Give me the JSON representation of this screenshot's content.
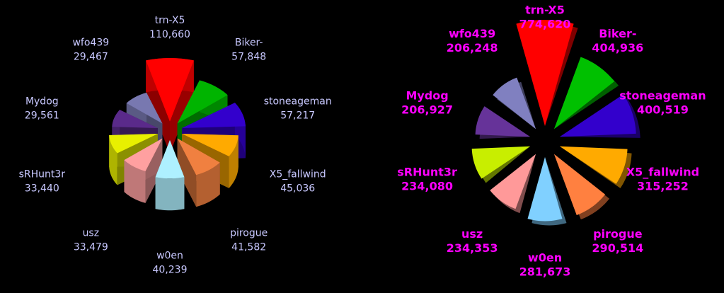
{
  "chart_data": [
    {
      "type": "rose",
      "three_d": true,
      "label_color": "#c8c8ff",
      "categories": [
        "trn-X5",
        "Biker-",
        "stoneageman",
        "X5_fallwind",
        "pirogue",
        "w0en",
        "usz",
        "sRHunt3r",
        "Mydog",
        "wfo439"
      ],
      "values": [
        110660,
        57848,
        57217,
        45036,
        41582,
        40239,
        33479,
        33440,
        29561,
        29467
      ],
      "value_labels": [
        "110,660",
        "57,848",
        "57,217",
        "45,036",
        "41,582",
        "40,239",
        "33,479",
        "33,440",
        "29,561",
        "29,467"
      ],
      "colors": [
        "#ff0000",
        "#00b400",
        "#3300cc",
        "#ffaa00",
        "#f08040",
        "#aef0ff",
        "#ffa0a0",
        "#e8f000",
        "#5a2a8a",
        "#7878b0"
      ]
    },
    {
      "type": "rose",
      "three_d": true,
      "label_color": "#ff00ff",
      "categories": [
        "trn-X5",
        "Biker-",
        "stoneageman",
        "X5_fallwind",
        "pirogue",
        "w0en",
        "usz",
        "sRHunt3r",
        "Mydog",
        "wfo439"
      ],
      "values": [
        774620,
        404936,
        400519,
        315252,
        290514,
        281673,
        234353,
        234080,
        206927,
        206248
      ],
      "value_labels": [
        "774,620",
        "404,936",
        "400,519",
        "315,252",
        "290,514",
        "281,673",
        "234,353",
        "234,080",
        "206,927",
        "206,248"
      ],
      "colors": [
        "#ff0000",
        "#00c000",
        "#3300cc",
        "#ffaa00",
        "#ff8040",
        "#80d0ff",
        "#ff9999",
        "#c8ee00",
        "#663399",
        "#8080c0"
      ]
    }
  ]
}
